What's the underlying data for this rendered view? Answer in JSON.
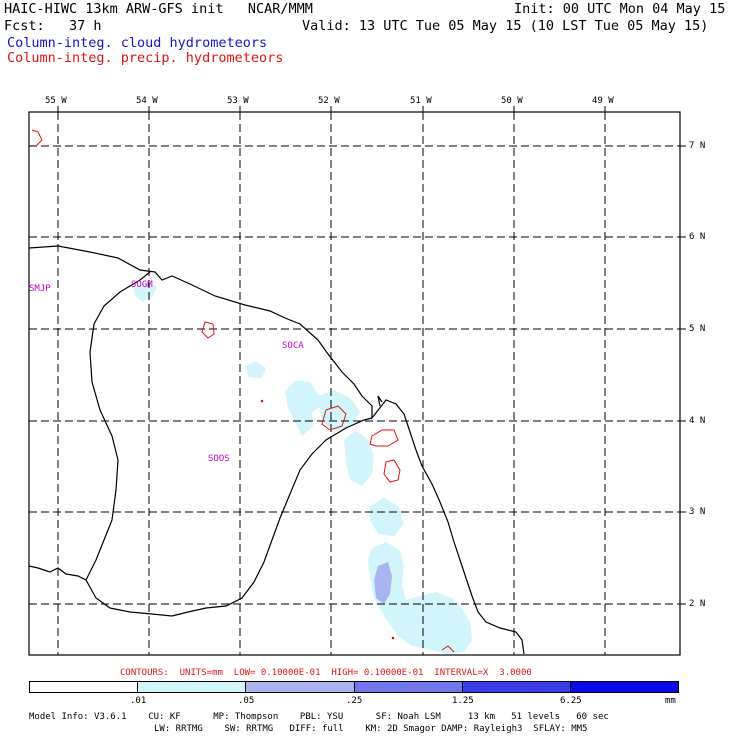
{
  "header": {
    "line1_left": "HAIC-HIWC 13km ARW-GFS init   NCAR/MMM",
    "line1_right": "Init: 00 UTC Mon 04 May 15",
    "line2_left": "Fcst:   37 h",
    "line2_right": "Valid: 13 UTC Tue 05 May 15 (10 LST Tue 05 May 15)",
    "field_cloud": "Column-integ. cloud hydrometeors",
    "field_precip": "Column-integ. precip. hydrometeors"
  },
  "map": {
    "lon_labels": [
      "55 W",
      "54 W",
      "53 W",
      "52 W",
      "51 W",
      "50 W",
      "49 W"
    ],
    "lat_labels": [
      "7 N",
      "6 N",
      "5 N",
      "4 N",
      "3 N",
      "2 N"
    ],
    "stations": [
      "SMJP",
      "SOGM",
      "SOCA",
      "SOOS"
    ]
  },
  "contours_line": "CONTOURS:  UNITS=mm  LOW= 0.10000E-01  HIGH= 0.10000E-01  INTERVAL=X  3.0000",
  "colorbar": {
    "colors": [
      "#ffffff",
      "#d2f5fc",
      "#aab4f0",
      "#7078ec",
      "#3a3ce8",
      "#0a0ae6"
    ],
    "ticks": [
      ".01",
      ".05",
      ".25",
      "1.25",
      "6.25",
      "mm"
    ]
  },
  "model_info": {
    "line1": "Model Info: V3.6.1    CU: KF      MP: Thompson    PBL: YSU      SF: Noah LSM     13 km   51 levels   60 sec",
    "line2": "LW: RRTMG    SW: RRTMG   DIFF: full    KM: 2D Smagor DAMP: Rayleigh3  SFLAY: MM5"
  }
}
